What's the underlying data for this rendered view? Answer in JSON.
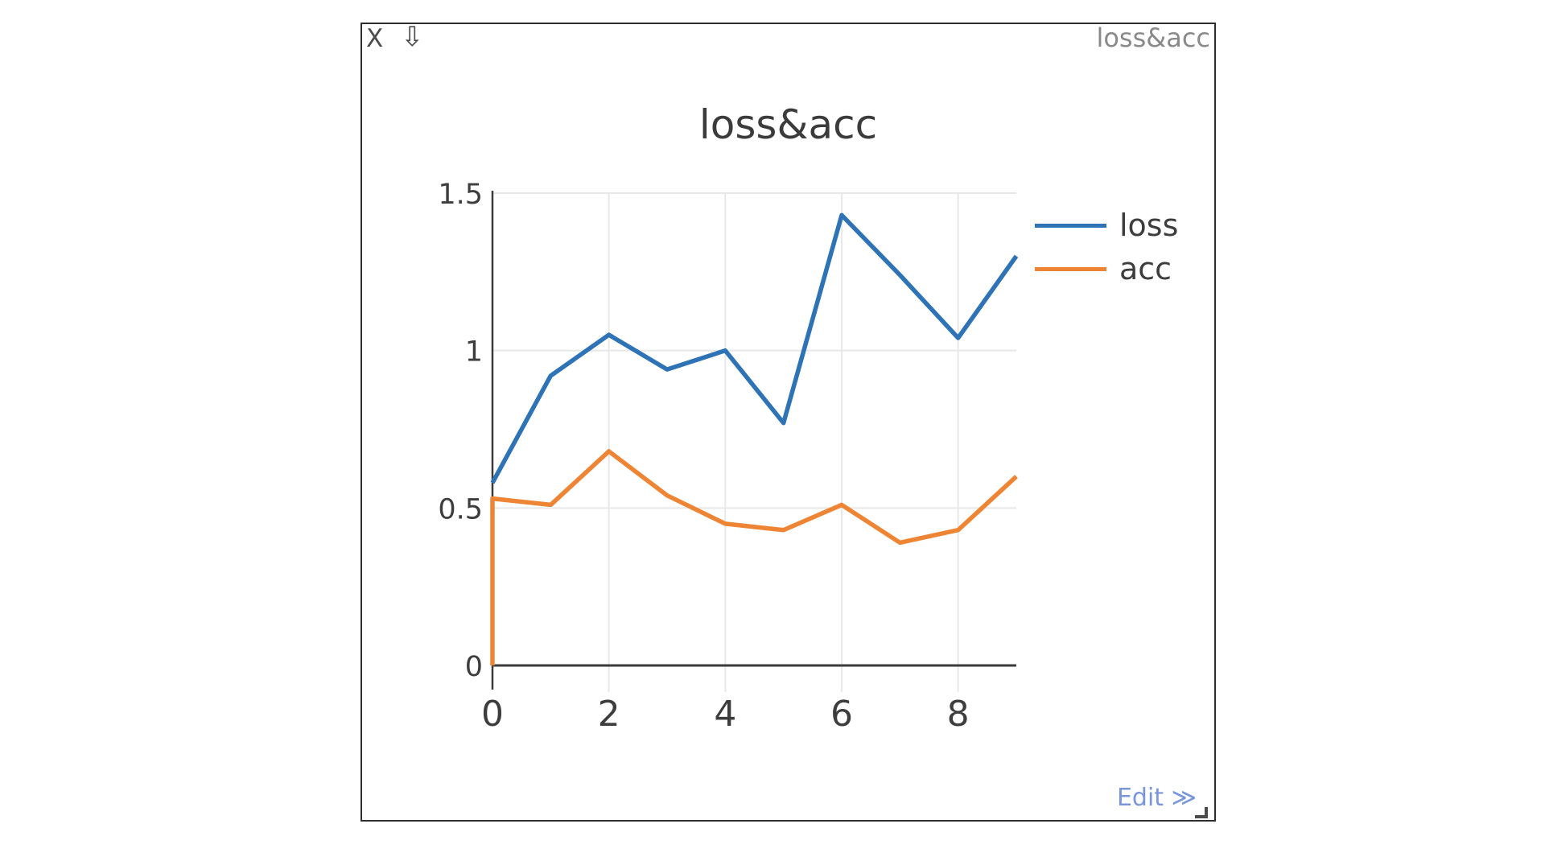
{
  "window": {
    "controls": {
      "close_glyph": "X",
      "download_glyph": "⇩"
    },
    "titlebar_right_label": "loss&acc",
    "footer": {
      "edit_label": "Edit ≫"
    }
  },
  "chart_data": {
    "type": "line",
    "title": "loss&acc",
    "x": [
      0,
      1,
      2,
      3,
      4,
      5,
      6,
      7,
      8,
      9
    ],
    "series": [
      {
        "name": "loss",
        "color": "#2d73b5",
        "values": [
          0.58,
          0.92,
          1.05,
          0.94,
          1.0,
          0.77,
          1.43,
          1.24,
          1.04,
          1.3
        ]
      },
      {
        "name": "acc",
        "color": "#ee8535",
        "values": [
          0.53,
          0.51,
          0.68,
          0.54,
          0.45,
          0.43,
          0.51,
          0.39,
          0.43,
          0.6
        ],
        "leading_vertical_from": 0
      }
    ],
    "xticks": [
      0,
      2,
      4,
      6,
      8
    ],
    "yticks": [
      0,
      0.5,
      1,
      1.5
    ],
    "xlim": [
      0,
      9
    ],
    "ylim": [
      0,
      1.5
    ],
    "grid": true,
    "legend_position": "right",
    "grid_color": "#e8e8e8",
    "axis_color": "#3a3a3a",
    "tick_label_color": "#3d3d3d"
  },
  "colors": {
    "edit_link": "#7996dd",
    "window_border": "#2e2e2e",
    "chrome_icon": "#4c4c4c",
    "titlebar_label": "#8a8a8a",
    "title_text": "#3b3b3b"
  }
}
